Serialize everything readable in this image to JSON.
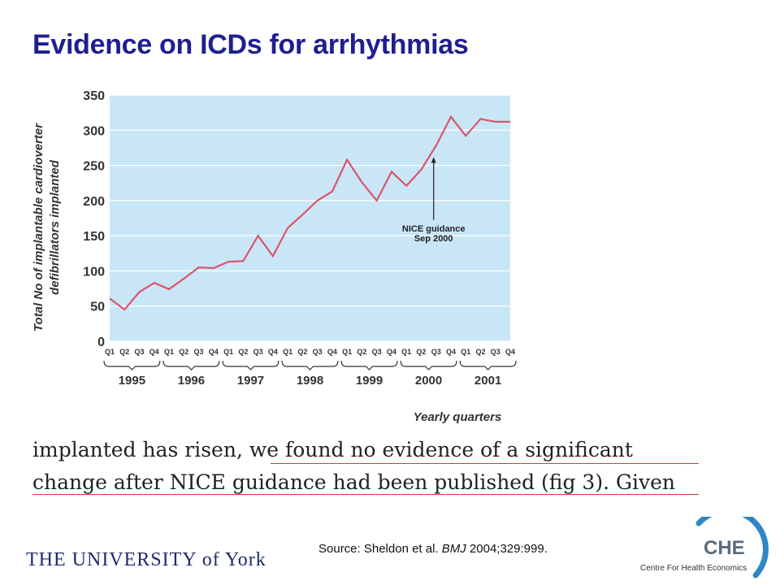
{
  "slide": {
    "title": "Evidence on ICDs for arrhythmias",
    "excerpt_line1_a": "implanted has risen, ",
    "excerpt_line1_b": "we found no evidence of a significant",
    "excerpt_line2": "change after NICE guidance had been published (fig 3). Given",
    "source_prefix": "Source: Sheldon et al. ",
    "source_journal": "BMJ",
    "source_suffix": " 2004;329:999.",
    "logo_left": "THE UNIVERSITY of York",
    "logo_right_mark": "CHE",
    "logo_right_text": "Centre For Health Economics"
  },
  "colors": {
    "title": "#1f1f8f",
    "plot_bg": "#c9e6f7",
    "line": "#d9566a",
    "underline": "#d23a3a"
  },
  "chart_data": {
    "type": "line",
    "ylabel_line1": "Total No of implantable cardioverter",
    "ylabel_line2": "defibrillators implanted",
    "xlabel": "Yearly quarters",
    "ylim": [
      0,
      350
    ],
    "yticks": [
      0,
      50,
      100,
      150,
      200,
      250,
      300,
      350
    ],
    "quarters": [
      "Q1",
      "Q2",
      "Q3",
      "Q4"
    ],
    "years": [
      "1995",
      "1996",
      "1997",
      "1998",
      "1999",
      "2000",
      "2001"
    ],
    "values": [
      61,
      45,
      70,
      83,
      74,
      89,
      105,
      104,
      113,
      114,
      150,
      121,
      161,
      180,
      200,
      213,
      258,
      226,
      200,
      241,
      221,
      244,
      278,
      319,
      292,
      316,
      312,
      312
    ],
    "annotation": {
      "line1": "NICE guidance",
      "line2": "Sep 2000",
      "index": 22
    }
  }
}
